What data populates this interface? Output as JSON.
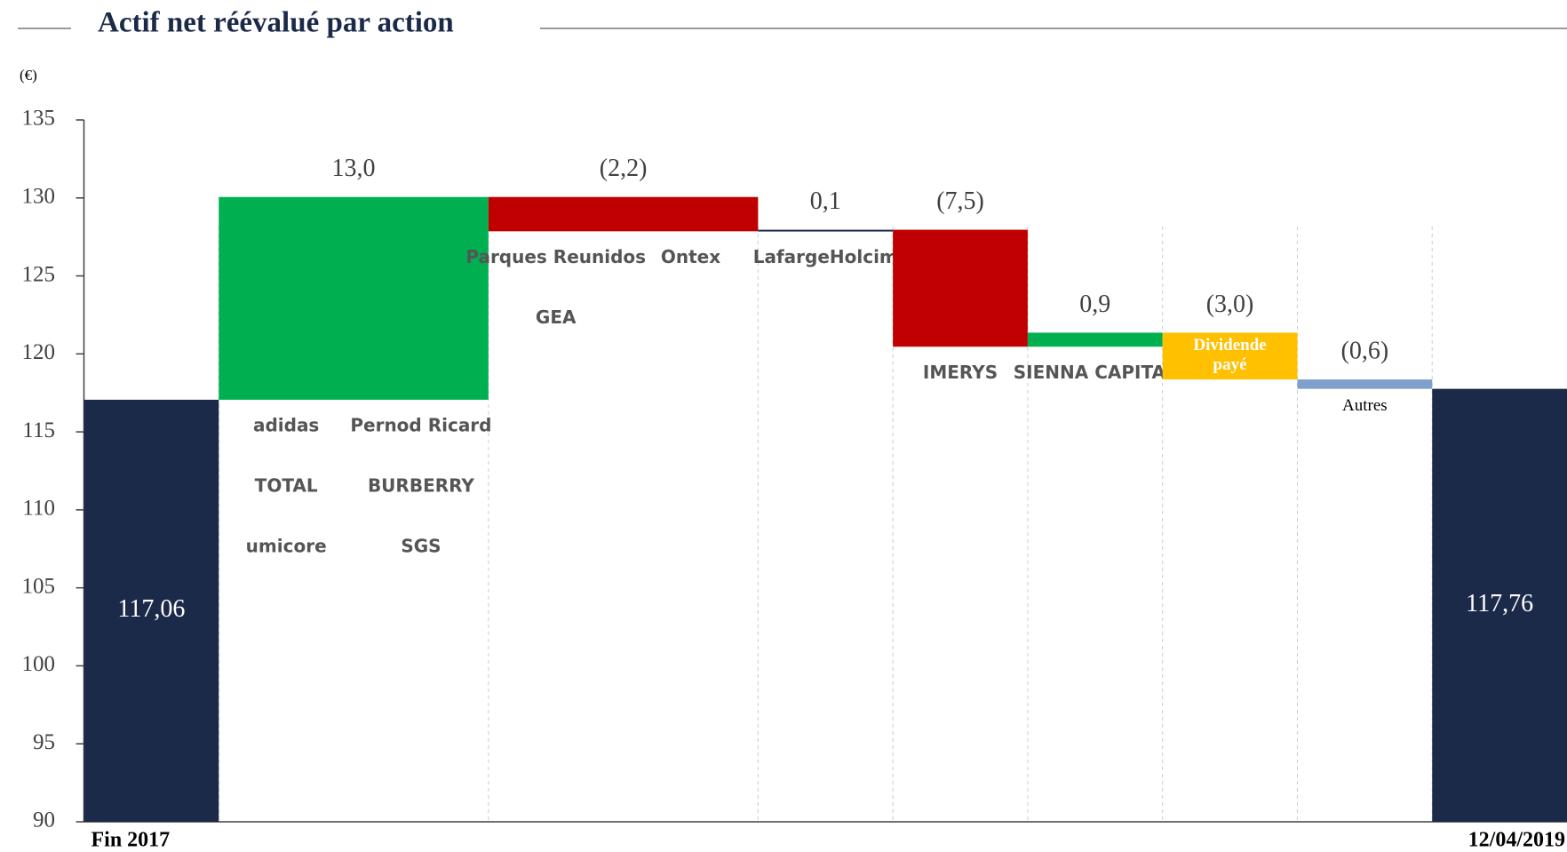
{
  "chart_data": {
    "type": "waterfall",
    "title": "Actif net réévalué par action",
    "unit_label": "(€)",
    "categories": [
      "Fin 2017",
      null,
      null,
      null,
      null,
      null,
      null,
      null,
      "12/04/2019"
    ],
    "measure": [
      "absolute",
      "relative",
      "relative",
      "relative",
      "relative",
      "relative",
      "relative",
      "relative",
      "absolute"
    ],
    "values": [
      117.06,
      13.0,
      -2.2,
      0.1,
      -7.5,
      0.9,
      -3.0,
      -0.6,
      117.76
    ],
    "value_labels": [
      "117,06",
      "13,0",
      "(2,2)",
      "0,1",
      "(7,5)",
      "0,9",
      "(3,0)",
      "(0,6)",
      "117,76"
    ],
    "colors": [
      "#1c2a4a",
      "#00b050",
      "#c00000",
      "#1c2a4a",
      "#c00000",
      "#00b050",
      "#ffc000",
      "#7f9fcc",
      "#1c2a4a"
    ],
    "logos": [
      [],
      [
        "adidas",
        "Pernod Ricard",
        "TOTAL",
        "BURBERRY",
        "umicore",
        "SGS"
      ],
      [
        "Parques Reunidos",
        "Ontex",
        "GEA"
      ],
      [
        "LafargeHolcim"
      ],
      [
        "IMERYS"
      ],
      [
        "SIENNA CAPITAL"
      ],
      [],
      [],
      []
    ],
    "annotations": [
      {
        "text": "Dividende payé",
        "bar": 6
      },
      {
        "text": "Autres",
        "bar": 7
      }
    ],
    "ylim": [
      90,
      135
    ],
    "yticks": [
      90,
      95,
      100,
      105,
      110,
      115,
      120,
      125,
      130,
      135
    ],
    "grid": false
  }
}
